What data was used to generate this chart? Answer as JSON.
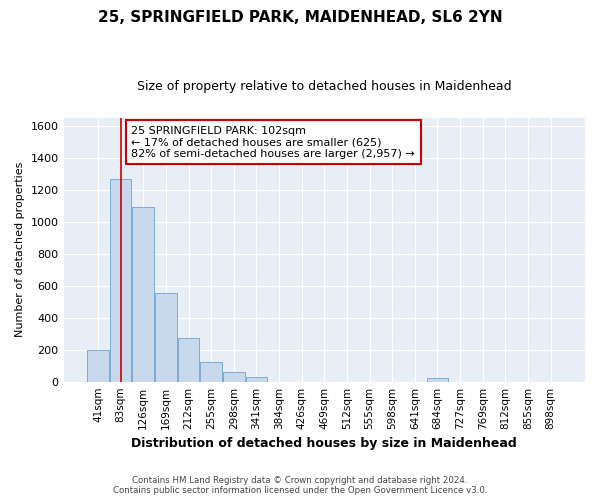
{
  "title": "25, SPRINGFIELD PARK, MAIDENHEAD, SL6 2YN",
  "subtitle": "Size of property relative to detached houses in Maidenhead",
  "xlabel": "Distribution of detached houses by size in Maidenhead",
  "ylabel": "Number of detached properties",
  "bar_color": "#c8d9ee",
  "bar_edge_color": "#7aadd4",
  "categories": [
    "41sqm",
    "83sqm",
    "126sqm",
    "169sqm",
    "212sqm",
    "255sqm",
    "298sqm",
    "341sqm",
    "384sqm",
    "426sqm",
    "469sqm",
    "512sqm",
    "555sqm",
    "598sqm",
    "641sqm",
    "684sqm",
    "727sqm",
    "769sqm",
    "812sqm",
    "855sqm",
    "898sqm"
  ],
  "values": [
    200,
    1270,
    1095,
    555,
    275,
    125,
    60,
    30,
    0,
    0,
    0,
    0,
    0,
    0,
    0,
    25,
    0,
    0,
    0,
    0,
    0
  ],
  "vline_x": 1,
  "vline_color": "#cc0000",
  "annotation_text": "25 SPRINGFIELD PARK: 102sqm\n← 17% of detached houses are smaller (625)\n82% of semi-detached houses are larger (2,957) →",
  "annotation_box_color": "#ffffff",
  "annotation_box_edge": "#cc0000",
  "ylim": [
    0,
    1650
  ],
  "yticks": [
    0,
    200,
    400,
    600,
    800,
    1000,
    1200,
    1400,
    1600
  ],
  "footer": "Contains HM Land Registry data © Crown copyright and database right 2024.\nContains public sector information licensed under the Open Government Licence v3.0.",
  "fig_bg_color": "#ffffff",
  "plot_bg_color": "#e8eef5",
  "grid_color": "#ffffff",
  "title_fontsize": 11,
  "subtitle_fontsize": 9,
  "ylabel_fontsize": 8,
  "xlabel_fontsize": 9
}
